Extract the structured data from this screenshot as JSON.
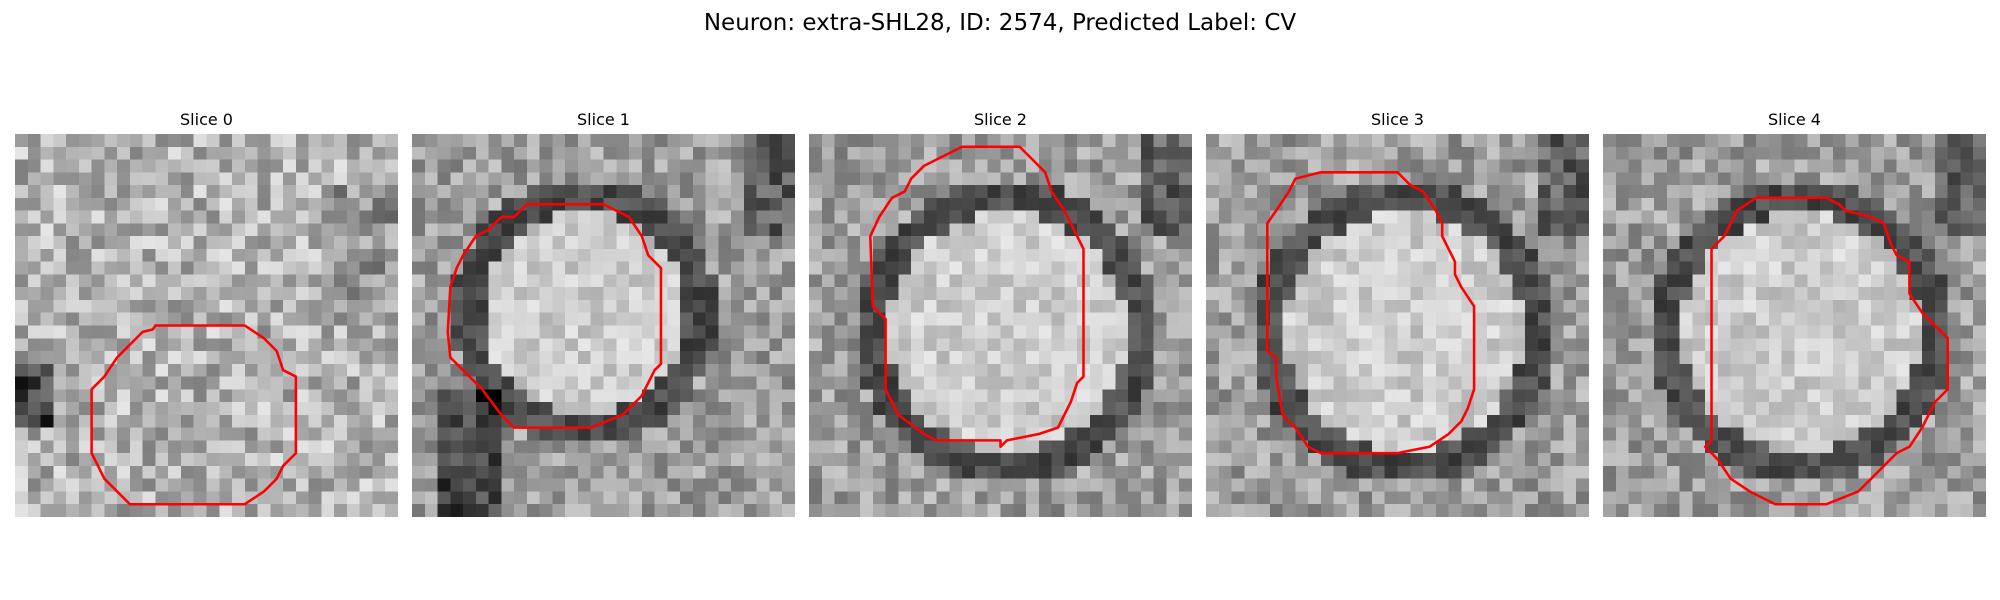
{
  "figure": {
    "title": "Neuron: extra-SHL28, ID: 2574, Predicted Label: CV",
    "contour_color": "#ff0000",
    "colormap": "gray"
  },
  "panels": [
    {
      "title": "Slice 0",
      "seed": 11,
      "scene": "dark-bottom-left"
    },
    {
      "title": "Slice 1",
      "seed": 23,
      "scene": "ring-upper"
    },
    {
      "title": "Slice 2",
      "seed": 37,
      "scene": "ring-center"
    },
    {
      "title": "Slice 3",
      "seed": 41,
      "scene": "ring-center"
    },
    {
      "title": "Slice 4",
      "seed": 53,
      "scene": "ring-center"
    }
  ]
}
